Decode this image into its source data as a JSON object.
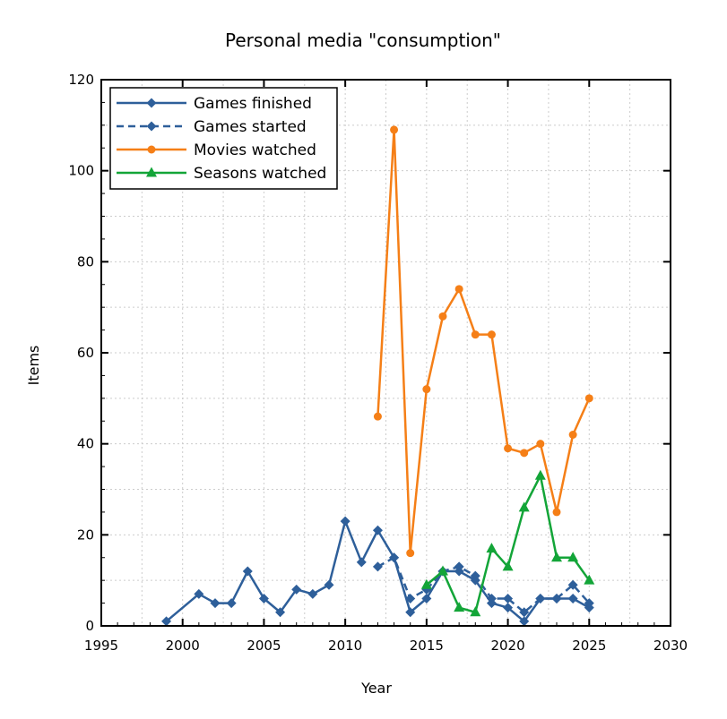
{
  "chart_data": {
    "type": "line",
    "title": "Personal media \"consumption\"",
    "xlabel": "Year",
    "ylabel": "Items",
    "xlim": [
      1995,
      2030
    ],
    "ylim": [
      0,
      120
    ],
    "xticks": [
      1995,
      2000,
      2005,
      2010,
      2015,
      2020,
      2025,
      2030
    ],
    "yticks": [
      0,
      20,
      40,
      60,
      80,
      100,
      120
    ],
    "grid": true,
    "legend_position": "top-left",
    "series": [
      {
        "name": "Games finished",
        "color": "#2e5f9a",
        "dash": false,
        "marker": "diamond",
        "x": [
          1999,
          2001,
          2002,
          2003,
          2004,
          2005,
          2006,
          2007,
          2008,
          2009,
          2010,
          2011,
          2012,
          2013,
          2014,
          2015,
          2016,
          2017,
          2018,
          2019,
          2020,
          2021,
          2022,
          2023,
          2024,
          2025
        ],
        "y": [
          1,
          7,
          5,
          5,
          12,
          6,
          3,
          8,
          7,
          9,
          23,
          14,
          21,
          15,
          3,
          6,
          12,
          12,
          10,
          5,
          4,
          1,
          6,
          6,
          6,
          4
        ]
      },
      {
        "name": "Games started",
        "color": "#2e5f9a",
        "dash": true,
        "marker": "diamond",
        "x": [
          2012,
          2013,
          2014,
          2015,
          2016,
          2017,
          2018,
          2019,
          2020,
          2021,
          2022,
          2023,
          2024,
          2025
        ],
        "y": [
          13,
          15,
          6,
          8,
          12,
          13,
          11,
          6,
          6,
          3,
          6,
          6,
          9,
          5
        ]
      },
      {
        "name": "Movies watched",
        "color": "#f57f17",
        "dash": false,
        "marker": "circle",
        "x": [
          2012,
          2013,
          2014,
          2015,
          2016,
          2017,
          2018,
          2019,
          2020,
          2021,
          2022,
          2023,
          2024,
          2025
        ],
        "y": [
          46,
          109,
          16,
          52,
          68,
          74,
          64,
          64,
          39,
          38,
          40,
          25,
          42,
          50
        ]
      },
      {
        "name": "Seasons watched",
        "color": "#13a538",
        "dash": false,
        "marker": "triangle",
        "x": [
          2015,
          2016,
          2017,
          2018,
          2019,
          2020,
          2021,
          2022,
          2023,
          2024,
          2025
        ],
        "y": [
          9,
          12,
          4,
          3,
          17,
          13,
          26,
          33,
          15,
          15,
          10
        ]
      }
    ]
  }
}
